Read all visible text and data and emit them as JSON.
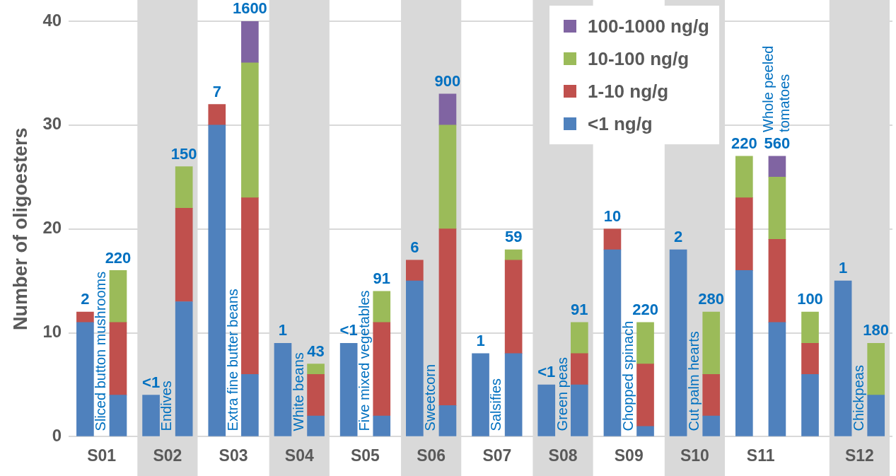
{
  "chart_data": {
    "type": "bar",
    "stacked": true,
    "ylabel": "Number of oligoesters",
    "categories": [
      "S01",
      null,
      "S02",
      null,
      "S03",
      null,
      "S04",
      null,
      "S05",
      null,
      "S06",
      null,
      "S07",
      null,
      "S08",
      null,
      "S09",
      null,
      "S10",
      null,
      "S11",
      null,
      null,
      "S12",
      null
    ],
    "ylim": [
      0,
      40
    ],
    "yticks": [
      0,
      10,
      20,
      30,
      40
    ],
    "series": [
      {
        "name": "<1 ng/g",
        "color": "#4f81bd",
        "values": [
          11,
          4,
          4,
          13,
          30,
          6,
          9,
          2,
          9,
          2,
          15,
          3,
          8,
          8,
          5,
          5,
          18,
          1,
          18,
          2,
          16,
          11,
          6,
          15,
          4
        ]
      },
      {
        "name": "1-10 ng/g",
        "color": "#c0504d",
        "values": [
          1,
          7,
          null,
          9,
          2,
          17,
          null,
          4,
          null,
          9,
          2,
          17,
          null,
          9,
          null,
          3,
          2,
          6,
          null,
          4,
          7,
          8,
          3,
          null,
          null
        ]
      },
      {
        "name": "10-100 ng/g",
        "color": "#9bbb59",
        "values": [
          null,
          5,
          null,
          4,
          null,
          13,
          null,
          1,
          null,
          3,
          null,
          10,
          null,
          1,
          null,
          3,
          null,
          4,
          null,
          6,
          4,
          6,
          3,
          null,
          5
        ]
      },
      {
        "name": "100-1000 ng/g",
        "color": "#8064a2",
        "values": [
          null,
          null,
          null,
          null,
          null,
          4,
          null,
          null,
          null,
          null,
          null,
          3,
          null,
          null,
          null,
          null,
          null,
          null,
          null,
          null,
          null,
          2,
          null,
          null,
          null
        ]
      }
    ],
    "value_labels": [
      "2",
      "220",
      "<1",
      "150",
      "7",
      "1600",
      "1",
      "43",
      "<1",
      "91",
      "6",
      "900",
      "1",
      "59",
      "<1",
      "91",
      "10",
      "220",
      "2",
      "280",
      "220",
      "560",
      "100",
      "1",
      "180"
    ],
    "annotations": [
      "Sliced button mushrooms",
      "Endives",
      "Extra fine butter beans",
      "White beans",
      "Five mixed vegetables",
      "Sweetcorn",
      "Salsifies",
      "Green peas",
      "Chopped spinach",
      "Cut palm hearts",
      "Whole peeled tomatoes",
      "Chickpeas"
    ],
    "grid": "y",
    "legend": "top right"
  }
}
